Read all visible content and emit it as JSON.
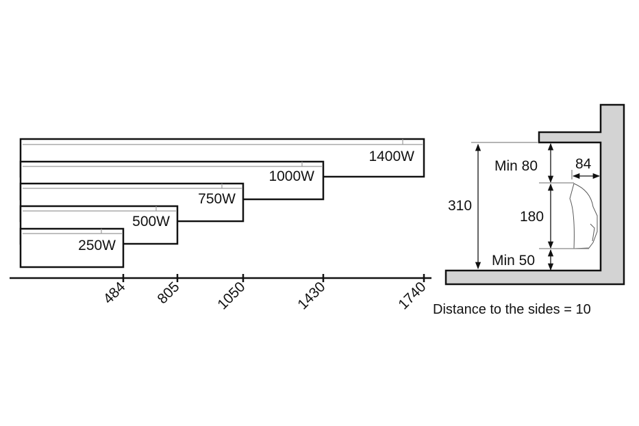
{
  "heaters": [
    {
      "label": "1400W",
      "length": "1740"
    },
    {
      "label": "1000W",
      "length": "1430"
    },
    {
      "label": "750W",
      "length": "1050"
    },
    {
      "label": "500W",
      "length": "805"
    },
    {
      "label": "250W",
      "length": "484"
    }
  ],
  "installation": {
    "total_height": "310",
    "top_clearance": "Min 80",
    "heater_height": "180",
    "bottom_clearance": "Min 50",
    "wall_distance": "84",
    "side_note": "Distance to the sides = 10"
  },
  "colors": {
    "wall_fill": "#d3d3d3",
    "line": "#111111"
  }
}
